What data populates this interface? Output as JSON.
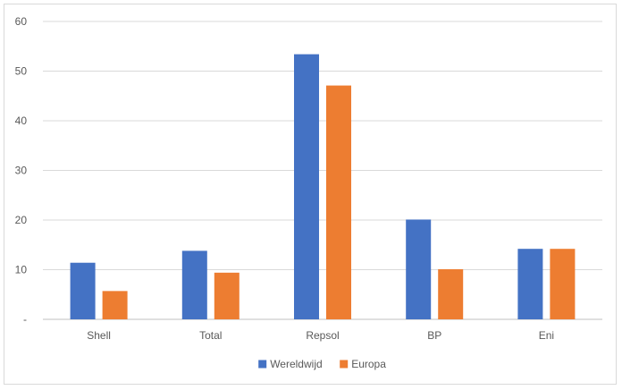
{
  "chart_data": {
    "type": "bar",
    "categories": [
      "Shell",
      "Total",
      "Repsol",
      "BP",
      "Eni"
    ],
    "series": [
      {
        "name": "Wereldwijd",
        "color": "#4472C4",
        "values": [
          11.4,
          13.8,
          53.4,
          20.1,
          14.2
        ]
      },
      {
        "name": "Europa",
        "color": "#ED7D31",
        "values": [
          5.7,
          9.4,
          47.1,
          10.1,
          14.2
        ]
      }
    ],
    "ylim": [
      0,
      60
    ],
    "y_ticks": [
      0,
      10,
      20,
      30,
      40,
      50,
      60
    ],
    "y_tick_labels": [
      "-",
      "10",
      "20",
      "30",
      "40",
      "50",
      "60"
    ],
    "grid": true,
    "legend": "bottom-center",
    "title": "",
    "xlabel": "",
    "ylabel": ""
  }
}
